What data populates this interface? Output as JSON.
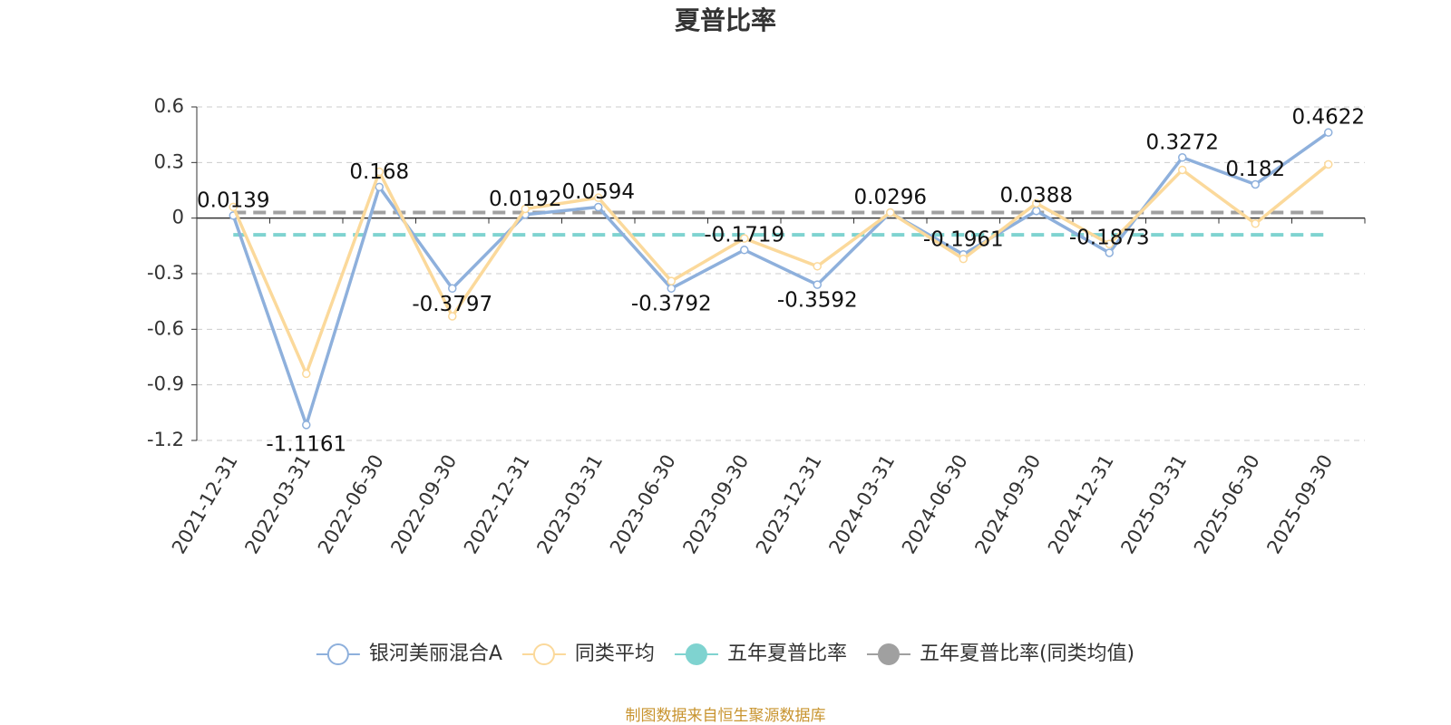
{
  "chart_data": {
    "type": "line",
    "title": "夏普比率",
    "categories": [
      "2021-12-31",
      "2022-03-31",
      "2022-06-30",
      "2022-09-30",
      "2022-12-31",
      "2023-03-31",
      "2023-06-30",
      "2023-09-30",
      "2023-12-31",
      "2024-03-31",
      "2024-06-30",
      "2024-09-30",
      "2024-12-31",
      "2025-03-31",
      "2025-06-30",
      "2025-09-30"
    ],
    "series": [
      {
        "name": "银河美丽混合A",
        "color": "#8eb0dc",
        "values": [
          0.0139,
          -1.1161,
          0.168,
          -0.3797,
          0.0192,
          0.0594,
          -0.3792,
          -0.1719,
          -0.3592,
          0.0296,
          -0.1961,
          0.0388,
          -0.1873,
          0.3272,
          0.182,
          0.4622
        ],
        "data_labels": true
      },
      {
        "name": "同类平均",
        "color": "#fbd99b",
        "values": [
          0.06,
          -0.84,
          0.25,
          -0.53,
          0.05,
          0.11,
          -0.34,
          -0.11,
          -0.26,
          0.03,
          -0.22,
          0.08,
          -0.14,
          0.26,
          -0.03,
          0.29
        ]
      }
    ],
    "reference_lines": [
      {
        "name": "五年夏普比率",
        "color": "#7fd3d0",
        "value": -0.09
      },
      {
        "name": "五年夏普比率(同类均值)",
        "color": "#a0a0a0",
        "value": 0.03
      }
    ],
    "ylim": [
      -1.2,
      0.6
    ],
    "yticks": [
      0.6,
      0.3,
      0,
      -0.3,
      -0.6,
      -0.9,
      -1.2
    ],
    "grid": true,
    "source": "制图数据来自恒生聚源数据库"
  }
}
